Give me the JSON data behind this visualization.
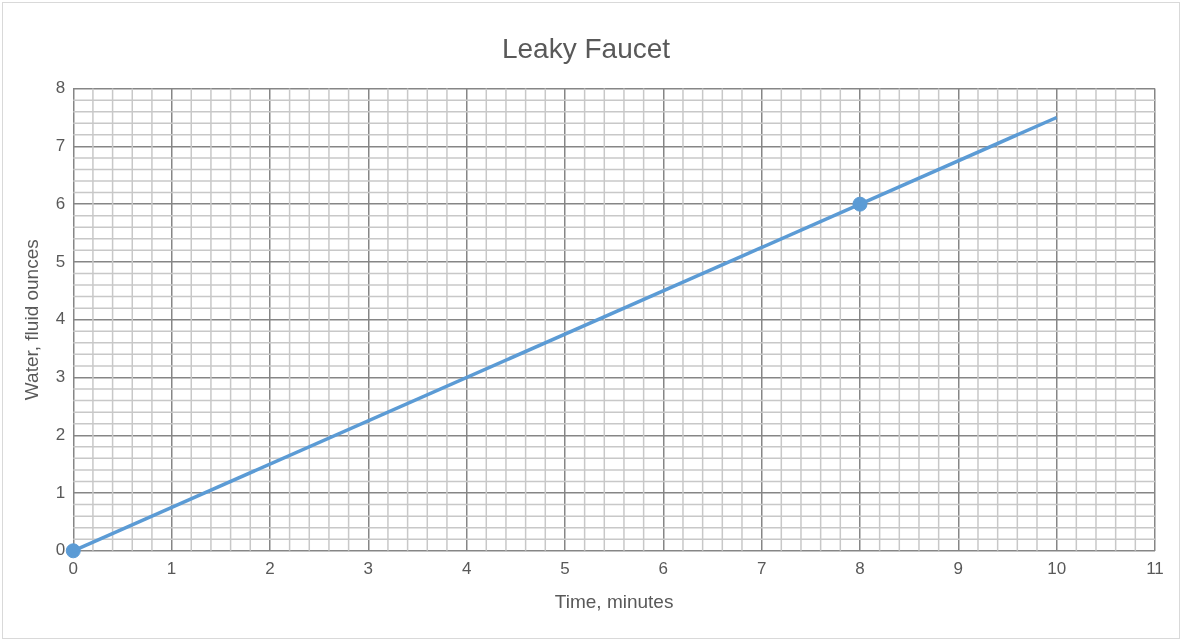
{
  "chart_data": {
    "type": "line",
    "title": "Leaky Faucet",
    "xlabel": "Time, minutes",
    "ylabel": "Water, fluid ounces",
    "xlim": [
      0,
      11
    ],
    "xticks": [
      0,
      1,
      2,
      3,
      4,
      5,
      6,
      7,
      8,
      9,
      10,
      11
    ],
    "ylim": [
      0,
      8
    ],
    "yticks": [
      0,
      1,
      2,
      3,
      4,
      5,
      6,
      7,
      8
    ],
    "grid": true,
    "series": [
      {
        "type": "line",
        "color": "#5b9bd5",
        "x": [
          0,
          10
        ],
        "values": [
          0,
          7.5
        ],
        "marker": "none"
      },
      {
        "type": "scatter",
        "color": "#5b9bd5",
        "x": [
          0,
          8
        ],
        "values": [
          0,
          6
        ],
        "marker": "circle"
      }
    ]
  }
}
